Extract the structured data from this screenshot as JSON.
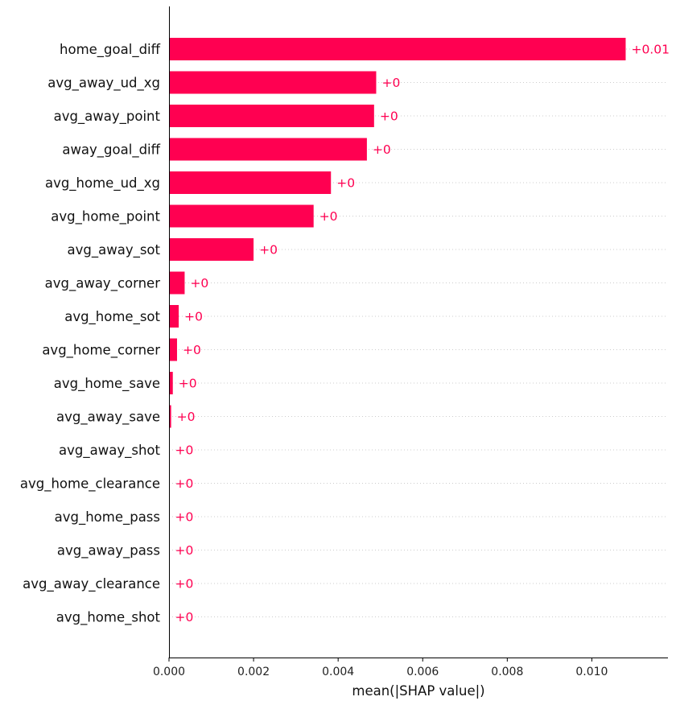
{
  "chart_data": {
    "type": "bar",
    "orientation": "horizontal",
    "title": "",
    "xlabel": "mean(|SHAP value|)",
    "ylabel": "",
    "xlim": [
      0,
      0.0118
    ],
    "xticks": [
      0.0,
      0.002,
      0.004,
      0.006,
      0.008,
      0.01
    ],
    "xtick_labels": [
      "0.000",
      "0.002",
      "0.004",
      "0.006",
      "0.008",
      "0.010"
    ],
    "grid": "horizontal dotted row guides",
    "bar_color": "#ff0051",
    "categories": [
      "home_goal_diff",
      "avg_away_ud_xg",
      "avg_away_point",
      "away_goal_diff",
      "avg_home_ud_xg",
      "avg_home_point",
      "avg_away_sot",
      "avg_away_corner",
      "avg_home_sot",
      "avg_home_corner",
      "avg_home_save",
      "avg_away_save",
      "avg_away_shot",
      "avg_home_clearance",
      "avg_home_pass",
      "avg_away_pass",
      "avg_away_clearance",
      "avg_home_shot"
    ],
    "values": [
      0.0108,
      0.0049,
      0.00485,
      0.00468,
      0.00383,
      0.00342,
      0.002,
      0.00037,
      0.00023,
      0.00019,
      9e-05,
      5e-05,
      1e-05,
      1e-05,
      1e-05,
      1e-05,
      1e-05,
      1e-05
    ],
    "value_labels": [
      "+0.01",
      "+0",
      "+0",
      "+0",
      "+0",
      "+0",
      "+0",
      "+0",
      "+0",
      "+0",
      "+0",
      "+0",
      "+0",
      "+0",
      "+0",
      "+0",
      "+0",
      "+0"
    ]
  }
}
